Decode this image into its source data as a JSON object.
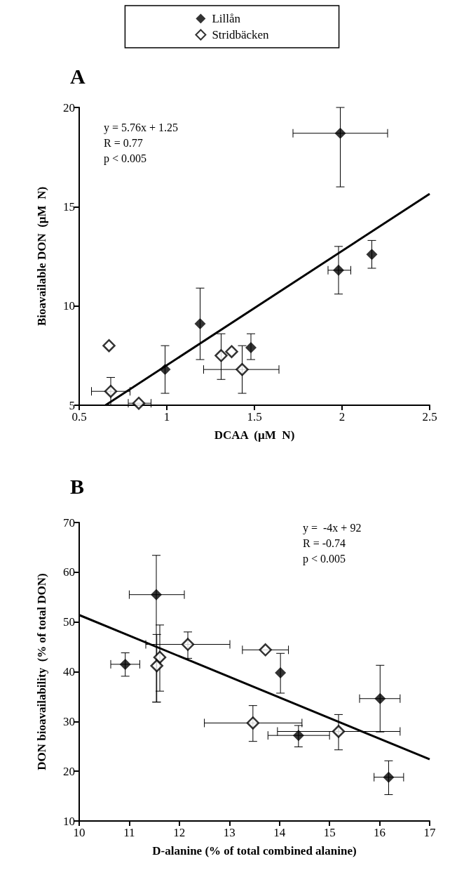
{
  "chart_data": [
    {
      "type": "scatter",
      "title": "A",
      "xlabel": "DCAA  (µM  N)",
      "ylabel": "Bioavailable DON  (µM  N)",
      "xlim": [
        0.5,
        2.5
      ],
      "xticks": [
        0.5,
        1,
        1.5,
        2,
        2.5
      ],
      "ylim": [
        5,
        20
      ],
      "yticks": [
        5,
        10,
        15,
        20
      ],
      "grid": false,
      "legend": "top",
      "marker": "diamond",
      "annotations": [
        "y = 5.76x + 1.25",
        "R = 0.77",
        "p < 0.005"
      ],
      "series": [
        {
          "name": "Lillån",
          "color": "#000000",
          "x": [
            1.99,
            1.98,
            2.17,
            1.19,
            1.48,
            0.99
          ],
          "values": [
            18.7,
            11.8,
            12.6,
            9.1,
            7.9,
            6.8
          ],
          "errors": [
            [
              16.0,
              20.0
            ],
            [
              10.6,
              13.0
            ],
            [
              11.9,
              13.3
            ],
            [
              7.3,
              10.9
            ],
            [
              7.3,
              8.6
            ],
            [
              5.6,
              8.0
            ]
          ],
          "xerrors": [
            [
              1.72,
              2.26
            ],
            [
              1.92,
              2.05
            ],
            null,
            null,
            null,
            null
          ]
        },
        {
          "name": "Stridbäcken",
          "color": "#000000",
          "x": [
            0.67,
            0.68,
            0.84,
            1.31,
            1.37,
            1.43
          ],
          "values": [
            8.0,
            5.7,
            5.1,
            7.5,
            7.7,
            6.8
          ],
          "errors": [
            null,
            [
              5.0,
              6.4
            ],
            null,
            [
              6.3,
              8.6
            ],
            null,
            [
              5.6,
              8.0
            ]
          ],
          "xerrors": [
            null,
            [
              0.57,
              0.79
            ],
            [
              0.78,
              0.91
            ],
            null,
            null,
            [
              1.21,
              1.64
            ]
          ]
        },
        {
          "type": "line",
          "color": "#000000",
          "marker": "none",
          "x": [
            0.65,
            2.5
          ],
          "values": [
            5.0,
            15.65
          ]
        }
      ]
    },
    {
      "type": "scatter",
      "title": "B",
      "xlabel": "D-alanine (% of total combined alanine)",
      "ylabel": "DON bioavailability  (% of total DON)",
      "xlim": [
        10,
        17
      ],
      "xticks": [
        10,
        11,
        12,
        13,
        14,
        15,
        16,
        17
      ],
      "ylim": [
        10,
        70
      ],
      "yticks": [
        10,
        20,
        30,
        40,
        50,
        60,
        70
      ],
      "grid": false,
      "legend": false,
      "marker": "diamond",
      "annotations": [
        "y =  -4x + 92",
        "R = -0.74",
        "p < 0.005"
      ],
      "series": [
        {
          "color": "#000000",
          "x": [
            11.54,
            10.92,
            14.02,
            16.01,
            14.38,
            16.18
          ],
          "values": [
            55.5,
            41.5,
            39.8,
            34.6,
            27.2,
            18.8
          ],
          "errors": [
            [
              33.9,
              63.4
            ],
            [
              39.1,
              43.8
            ],
            [
              35.7,
              43.7
            ],
            [
              27.9,
              41.3
            ],
            [
              24.9,
              29.2
            ],
            [
              15.3,
              22.1
            ]
          ],
          "xerrors": [
            [
              11.0,
              12.1
            ],
            [
              10.63,
              11.21
            ],
            null,
            [
              15.6,
              16.41
            ],
            [
              13.77,
              15.0
            ],
            [
              15.89,
              16.48
            ]
          ]
        },
        {
          "color": "#000000",
          "x": [
            12.17,
            13.72,
            11.61,
            11.55,
            13.47,
            15.18
          ],
          "values": [
            45.5,
            44.4,
            42.9,
            41.2,
            29.7,
            28.0
          ],
          "errors": [
            [
              42.7,
              48.0
            ],
            null,
            [
              36.1,
              49.4
            ],
            [
              33.9,
              47.5
            ],
            [
              26.0,
              33.2
            ],
            [
              24.3,
              31.4
            ]
          ],
          "xerrors": [
            [
              11.33,
              13.01
            ],
            [
              13.26,
              14.18
            ],
            null,
            null,
            [
              12.5,
              14.45
            ],
            [
              13.96,
              16.41
            ]
          ]
        },
        {
          "type": "line",
          "color": "#000000",
          "marker": "none",
          "x": [
            10,
            17
          ],
          "values": [
            51.4,
            22.4
          ]
        }
      ]
    }
  ]
}
